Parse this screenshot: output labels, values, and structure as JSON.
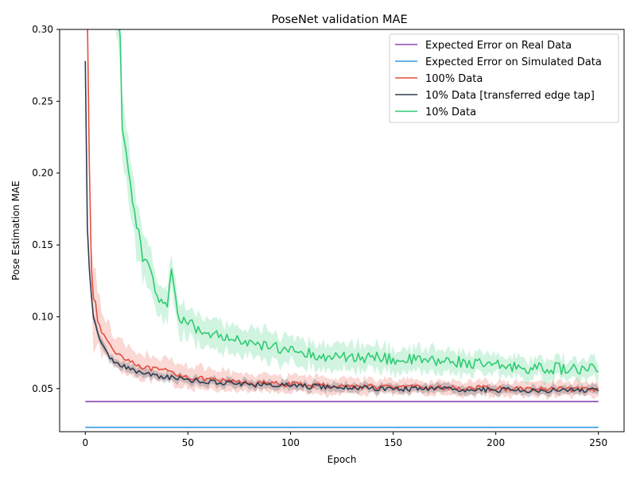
{
  "chart_data": {
    "type": "line",
    "title": "PoseNet validation MAE",
    "xlabel": "Epoch",
    "ylabel": "Pose Estimation MAE",
    "xlim": [
      -12.5,
      262.5
    ],
    "ylim": [
      0.02,
      0.3
    ],
    "xticks": [
      0,
      50,
      100,
      150,
      200,
      250
    ],
    "yticks": [
      0.05,
      0.1,
      0.15,
      0.2,
      0.25,
      0.3
    ],
    "ytick_labels": [
      "0.05",
      "0.10",
      "0.15",
      "0.20",
      "0.25",
      "0.30"
    ],
    "legend_position": "top-right",
    "grid": false,
    "series": [
      {
        "name": "Expected Error on Real Data",
        "color": "#8e44ad",
        "x": [
          0,
          250
        ],
        "y": [
          0.041,
          0.041
        ],
        "band": 0
      },
      {
        "name": "Expected Error on Simulated Data",
        "color": "#3498db",
        "x": [
          0,
          250
        ],
        "y": [
          0.023,
          0.023
        ],
        "band": 0
      },
      {
        "name": "100% Data",
        "color": "#e74c3c",
        "x": [
          0,
          1,
          2,
          3,
          4,
          5,
          6,
          8,
          10,
          12,
          15,
          20,
          25,
          30,
          40,
          50,
          60,
          70,
          80,
          100,
          120,
          150,
          200,
          250
        ],
        "y": [
          0.33,
          0.31,
          0.205,
          0.135,
          0.114,
          0.112,
          0.095,
          0.09,
          0.085,
          0.08,
          0.075,
          0.071,
          0.067,
          0.064,
          0.062,
          0.058,
          0.056,
          0.055,
          0.054,
          0.053,
          0.052,
          0.051,
          0.05,
          0.049
        ],
        "band": [
          0.005,
          0.005,
          0.01,
          0.02,
          0.03,
          0.03,
          0.02,
          0.015,
          0.013,
          0.012,
          0.011,
          0.01,
          0.009,
          0.009,
          0.008,
          0.008,
          0.007,
          0.007,
          0.006,
          0.006,
          0.006,
          0.005,
          0.005,
          0.005
        ]
      },
      {
        "name": "10% Data [transferred edge tap]",
        "color": "#2c3e50",
        "x": [
          0,
          1,
          2,
          3,
          4,
          5,
          6,
          8,
          10,
          12,
          15,
          20,
          25,
          30,
          40,
          50,
          60,
          70,
          80,
          100,
          120,
          150,
          200,
          250
        ],
        "y": [
          0.278,
          0.162,
          0.133,
          0.115,
          0.1,
          0.094,
          0.09,
          0.082,
          0.075,
          0.072,
          0.068,
          0.065,
          0.062,
          0.06,
          0.058,
          0.056,
          0.055,
          0.054,
          0.053,
          0.052,
          0.051,
          0.05,
          0.049,
          0.049
        ],
        "band": [
          0.003,
          0.003,
          0.003,
          0.003,
          0.003,
          0.003,
          0.003,
          0.003,
          0.003,
          0.003,
          0.003,
          0.003,
          0.003,
          0.003,
          0.003,
          0.003,
          0.003,
          0.003,
          0.003,
          0.003,
          0.003,
          0.003,
          0.003,
          0.003
        ]
      },
      {
        "name": "10% Data",
        "color": "#2ecc71",
        "x": [
          15,
          17,
          18,
          20,
          22,
          24,
          26,
          28,
          30,
          35,
          40,
          42,
          45,
          50,
          55,
          60,
          70,
          80,
          90,
          100,
          110,
          120,
          130,
          140,
          150,
          160,
          170,
          180,
          190,
          200,
          210,
          220,
          230,
          240,
          250
        ],
        "y": [
          0.32,
          0.295,
          0.23,
          0.21,
          0.195,
          0.17,
          0.16,
          0.14,
          0.142,
          0.115,
          0.11,
          0.13,
          0.1,
          0.098,
          0.09,
          0.088,
          0.085,
          0.08,
          0.079,
          0.078,
          0.074,
          0.072,
          0.071,
          0.072,
          0.07,
          0.07,
          0.069,
          0.069,
          0.067,
          0.066,
          0.065,
          0.064,
          0.064,
          0.063,
          0.063
        ],
        "band": [
          0.02,
          0.02,
          0.02,
          0.02,
          0.02,
          0.02,
          0.018,
          0.015,
          0.015,
          0.013,
          0.012,
          0.012,
          0.011,
          0.011,
          0.01,
          0.01,
          0.01,
          0.01,
          0.01,
          0.009,
          0.009,
          0.009,
          0.009,
          0.008,
          0.008,
          0.008,
          0.008,
          0.008,
          0.007,
          0.007,
          0.007,
          0.007,
          0.007,
          0.007,
          0.007
        ]
      }
    ]
  }
}
